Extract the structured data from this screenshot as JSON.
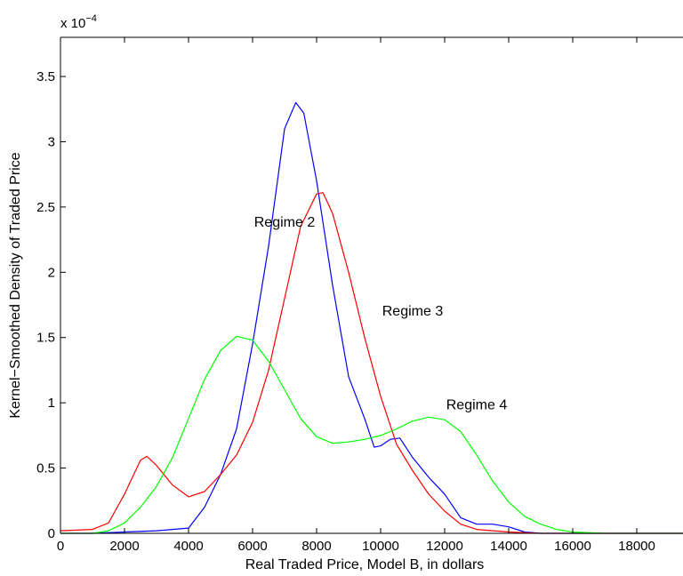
{
  "chart_data": {
    "type": "line",
    "title": "",
    "xlabel": "Real Traded Price, Model B, in dollars",
    "ylabel": "Kernel−Smoothed Density of Traded Price",
    "y_multiplier_label": {
      "base": "x 10",
      "exponent": "−4"
    },
    "xlim": [
      0,
      19500
    ],
    "ylim": [
      0,
      3.8
    ],
    "y_scale": 0.0001,
    "xticks": [
      0,
      2000,
      4000,
      6000,
      8000,
      10000,
      12000,
      14000,
      16000,
      18000
    ],
    "yticks": [
      0,
      0.5,
      1,
      1.5,
      2,
      2.5,
      3,
      3.5
    ],
    "grid": false,
    "legend": "none",
    "series": [
      {
        "color": "#0000ff",
        "points": [
          [
            0,
            0.0
          ],
          [
            1000,
            0.0
          ],
          [
            2000,
            0.01
          ],
          [
            3000,
            0.02
          ],
          [
            4000,
            0.04
          ],
          [
            4500,
            0.2
          ],
          [
            5000,
            0.45
          ],
          [
            5500,
            0.8
          ],
          [
            6000,
            1.45
          ],
          [
            6500,
            2.2
          ],
          [
            7000,
            3.1
          ],
          [
            7350,
            3.3
          ],
          [
            7600,
            3.22
          ],
          [
            8000,
            2.7
          ],
          [
            8500,
            1.9
          ],
          [
            9000,
            1.2
          ],
          [
            9500,
            0.88
          ],
          [
            9800,
            0.66
          ],
          [
            10000,
            0.67
          ],
          [
            10300,
            0.72
          ],
          [
            10600,
            0.73
          ],
          [
            11000,
            0.58
          ],
          [
            11500,
            0.43
          ],
          [
            12000,
            0.3
          ],
          [
            12500,
            0.12
          ],
          [
            13000,
            0.07
          ],
          [
            13500,
            0.07
          ],
          [
            14000,
            0.05
          ],
          [
            14500,
            0.01
          ],
          [
            15000,
            0.0
          ],
          [
            19500,
            0.0
          ]
        ]
      },
      {
        "color": "#ff0000",
        "points": [
          [
            0,
            0.02
          ],
          [
            1000,
            0.03
          ],
          [
            1500,
            0.08
          ],
          [
            2000,
            0.3
          ],
          [
            2500,
            0.56
          ],
          [
            2700,
            0.59
          ],
          [
            3000,
            0.52
          ],
          [
            3500,
            0.37
          ],
          [
            4000,
            0.28
          ],
          [
            4500,
            0.32
          ],
          [
            5000,
            0.45
          ],
          [
            5500,
            0.6
          ],
          [
            6000,
            0.85
          ],
          [
            6500,
            1.25
          ],
          [
            7000,
            1.8
          ],
          [
            7500,
            2.35
          ],
          [
            8000,
            2.6
          ],
          [
            8200,
            2.61
          ],
          [
            8500,
            2.45
          ],
          [
            9000,
            2.0
          ],
          [
            9500,
            1.5
          ],
          [
            10000,
            1.05
          ],
          [
            10500,
            0.68
          ],
          [
            11000,
            0.48
          ],
          [
            11500,
            0.3
          ],
          [
            12000,
            0.17
          ],
          [
            12500,
            0.07
          ],
          [
            13000,
            0.03
          ],
          [
            14000,
            0.01
          ],
          [
            15000,
            0.0
          ],
          [
            19500,
            0.0
          ]
        ]
      },
      {
        "color": "#00ff00",
        "points": [
          [
            0,
            0.0
          ],
          [
            1000,
            0.0
          ],
          [
            1500,
            0.02
          ],
          [
            2000,
            0.08
          ],
          [
            2500,
            0.2
          ],
          [
            3000,
            0.36
          ],
          [
            3500,
            0.58
          ],
          [
            4000,
            0.88
          ],
          [
            4500,
            1.18
          ],
          [
            5000,
            1.4
          ],
          [
            5500,
            1.51
          ],
          [
            6000,
            1.48
          ],
          [
            6500,
            1.32
          ],
          [
            7000,
            1.1
          ],
          [
            7500,
            0.88
          ],
          [
            8000,
            0.74
          ],
          [
            8500,
            0.69
          ],
          [
            9000,
            0.7
          ],
          [
            9500,
            0.72
          ],
          [
            10000,
            0.75
          ],
          [
            10500,
            0.8
          ],
          [
            11000,
            0.86
          ],
          [
            11500,
            0.89
          ],
          [
            12000,
            0.87
          ],
          [
            12500,
            0.78
          ],
          [
            13000,
            0.6
          ],
          [
            13500,
            0.4
          ],
          [
            14000,
            0.24
          ],
          [
            14500,
            0.13
          ],
          [
            15000,
            0.07
          ],
          [
            15500,
            0.03
          ],
          [
            16000,
            0.01
          ],
          [
            17000,
            0.0
          ],
          [
            19500,
            0.0
          ]
        ]
      }
    ],
    "annotations": [
      {
        "text": "Regime 2",
        "x": 7000,
        "y": 2.35
      },
      {
        "text": "Regime 3",
        "x": 11000,
        "y": 1.67
      },
      {
        "text": "Regime 4",
        "x": 13000,
        "y": 0.95
      }
    ]
  }
}
